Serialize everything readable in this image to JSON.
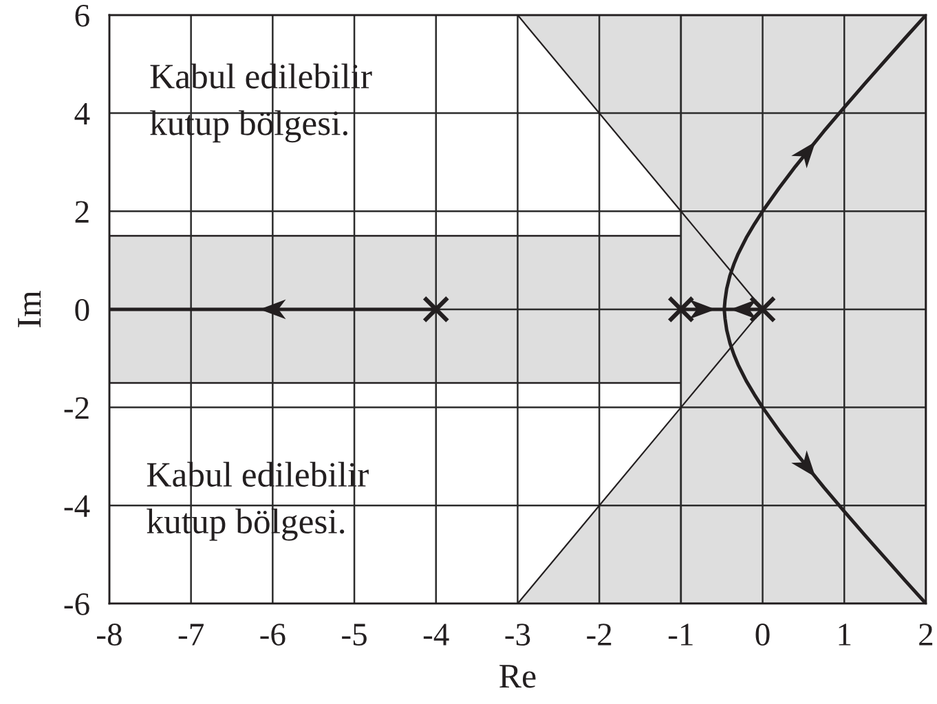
{
  "chart_data": {
    "type": "line",
    "xlabel": "Re",
    "ylabel": "Im",
    "xlim": [
      -8,
      2
    ],
    "ylim": [
      -6,
      6
    ],
    "xticks": [
      -8,
      -7,
      -6,
      -5,
      -4,
      -3,
      -2,
      -1,
      0,
      1,
      2
    ],
    "yticks": [
      -6,
      -4,
      -2,
      0,
      2,
      4,
      6
    ],
    "grid": true,
    "bands": [
      {
        "axis": "y",
        "from": -1.5,
        "to": 1.5,
        "color": "#dedede"
      },
      {
        "axis": "x",
        "from": -1,
        "to": 2,
        "color": "#dedede"
      }
    ],
    "series": [
      {
        "color": "#231f20",
        "x": [
          -3,
          -1,
          0
        ],
        "values": [
          6,
          2,
          0
        ],
        "lower": [
          6,
          2,
          null
        ],
        "upper": [
          6,
          6,
          null
        ]
      },
      {
        "color": "#231f20",
        "x": [
          -3,
          -1,
          0
        ],
        "values": [
          -6,
          -2,
          0
        ],
        "lower": [
          -6,
          -6,
          null
        ],
        "upper": [
          -6,
          -2,
          null
        ]
      },
      {
        "color": "#231f20",
        "x": [
          -4,
          -8
        ],
        "values": [
          0,
          0
        ]
      },
      {
        "color": "#231f20",
        "x": [
          0,
          -0.47,
          -0.46,
          -0.44,
          -0.4,
          -0.35,
          -0.3,
          -0.2,
          -0.1,
          0,
          0.2,
          0.4,
          0.75,
          1,
          1.25,
          1.5,
          1.75,
          2
        ],
        "values": [
          0,
          0,
          0.19,
          0.42,
          0.69,
          0.93,
          1.13,
          1.46,
          1.74,
          2,
          2.47,
          2.91,
          3.63,
          4.12,
          4.6,
          5.07,
          5.54,
          6
        ]
      },
      {
        "color": "#231f20",
        "x": [
          -1,
          -0.47,
          -0.46,
          -0.44,
          -0.4,
          -0.35,
          -0.3,
          -0.2,
          -0.1,
          0,
          0.2,
          0.4,
          0.75,
          1,
          1.25,
          1.5,
          1.75,
          2
        ],
        "values": [
          0,
          0,
          -0.19,
          -0.42,
          -0.69,
          -0.93,
          -1.13,
          -1.46,
          -1.74,
          -2,
          -2.47,
          -2.91,
          -3.63,
          -4.12,
          -4.6,
          -5.07,
          -5.54,
          -6
        ]
      },
      {
        "type": "scatter",
        "color": "#231f20",
        "marker": "cross",
        "x": [
          -4,
          -1,
          0
        ],
        "values": [
          0,
          0,
          0
        ]
      }
    ],
    "annotations": [
      "Kabul edilebilir\nkutup bölgesi.",
      "Kabul edilebilir\nkutup bölgesi."
    ]
  }
}
